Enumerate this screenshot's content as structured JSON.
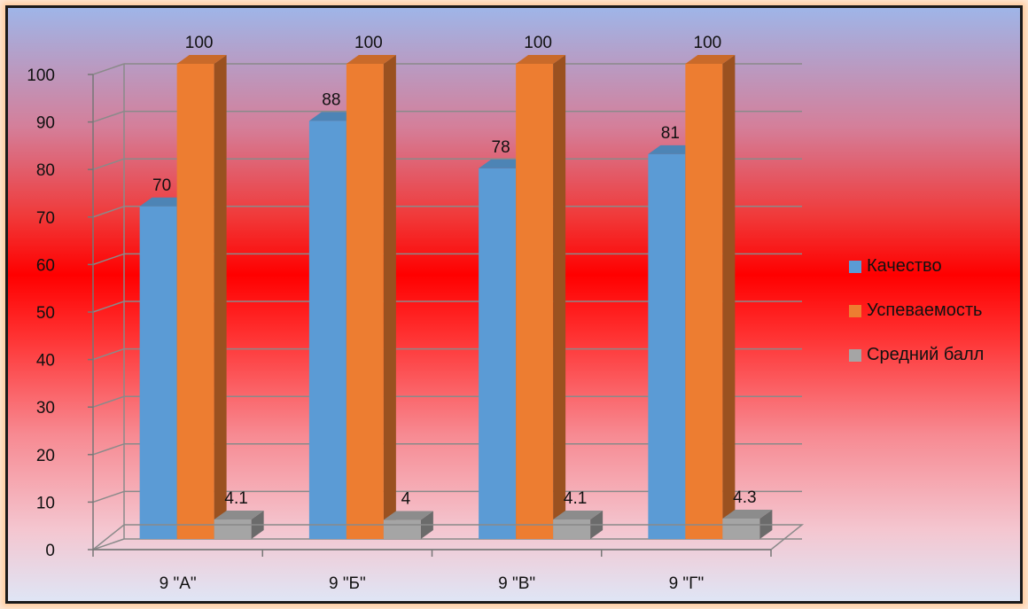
{
  "chart_data": {
    "type": "bar",
    "title": "",
    "xlabel": "",
    "ylabel": "",
    "categories": [
      "9 \"А\"",
      "9 \"Б\"",
      "9 \"В\"",
      "9 \"Г\""
    ],
    "series": [
      {
        "name": "Качество",
        "values": [
          70,
          88,
          78,
          81
        ],
        "labels": [
          "70",
          "88",
          "78",
          "81"
        ],
        "color": "#5b9bd5"
      },
      {
        "name": "Успеваемость",
        "values": [
          100,
          100,
          100,
          100
        ],
        "labels": [
          "100",
          "100",
          "100",
          "100"
        ],
        "color": "#ed7d31"
      },
      {
        "name": "Средний балл",
        "values": [
          4.1,
          4,
          4.1,
          4.3
        ],
        "labels": [
          "4.1",
          "4",
          "4.1",
          "4.3"
        ],
        "color": "#a5a5a5"
      }
    ],
    "ylim": [
      0,
      100
    ],
    "yticks": [
      "0",
      "10",
      "20",
      "30",
      "40",
      "50",
      "60",
      "70",
      "80",
      "90",
      "100"
    ],
    "grid": true,
    "legend": "right",
    "style": "3d-column"
  }
}
